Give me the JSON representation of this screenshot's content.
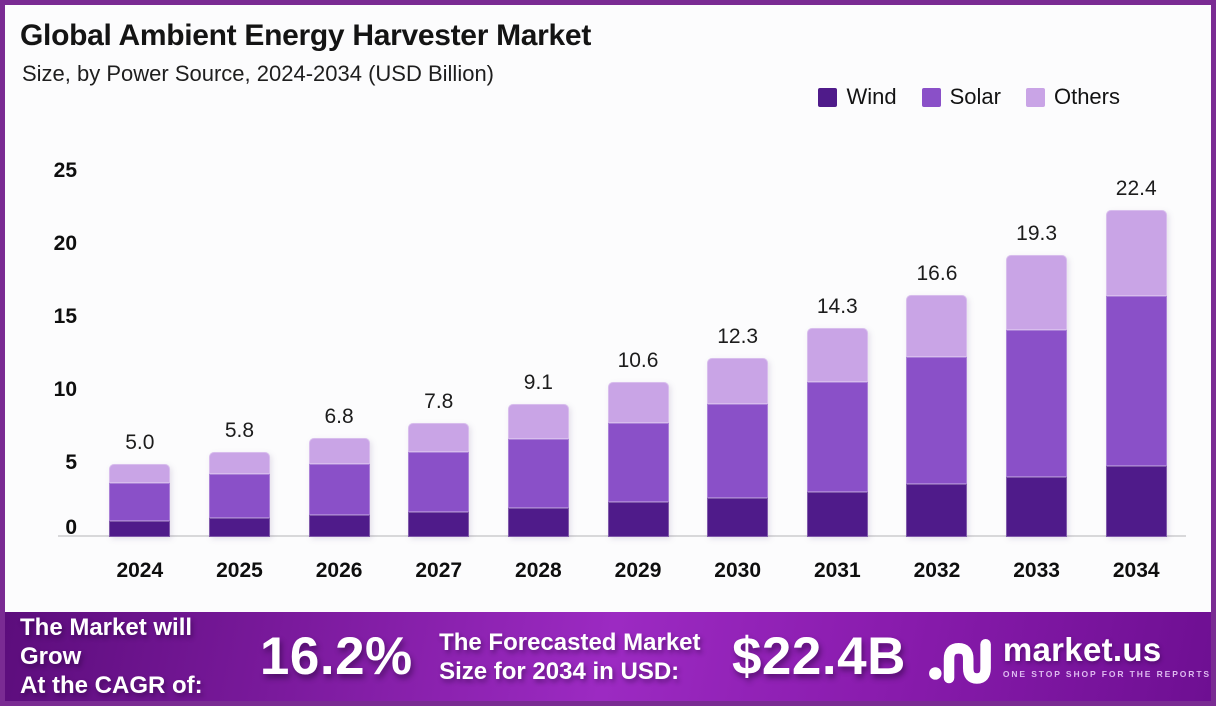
{
  "meta": {
    "border_color": "#7a2b93",
    "card_background": "#fcfcfd",
    "baseline_color": "#d8d8da"
  },
  "header": {
    "title": "Global Ambient Energy Harvester Market",
    "subtitle": "Size, by Power Source, 2024-2034 (USD Billion)"
  },
  "legend": [
    {
      "label": "Wind",
      "color": "#4f1b8a"
    },
    {
      "label": "Solar",
      "color": "#8a50c8"
    },
    {
      "label": "Others",
      "color": "#c9a4e6"
    }
  ],
  "chart_data": {
    "type": "bar",
    "stacked": true,
    "title": "Global Ambient Energy Harvester Market Size, by Power Source, 2024-2034 (USD Billion)",
    "categories": [
      "2024",
      "2025",
      "2026",
      "2027",
      "2028",
      "2029",
      "2030",
      "2031",
      "2032",
      "2033",
      "2034"
    ],
    "series": [
      {
        "name": "Wind",
        "color": "#4f1b8a",
        "values": [
          1.1,
          1.3,
          1.5,
          1.7,
          2.0,
          2.4,
          2.7,
          3.1,
          3.6,
          4.1,
          4.9
        ]
      },
      {
        "name": "Solar",
        "color": "#8a50c8",
        "values": [
          2.6,
          3.0,
          3.5,
          4.1,
          4.7,
          5.4,
          6.4,
          7.5,
          8.7,
          10.1,
          11.6
        ]
      },
      {
        "name": "Others",
        "color": "#c9a4e6",
        "values": [
          1.3,
          1.5,
          1.8,
          2.0,
          2.4,
          2.8,
          3.2,
          3.7,
          4.3,
          5.1,
          5.9
        ]
      }
    ],
    "totals": [
      5.0,
      5.8,
      6.8,
      7.8,
      9.1,
      10.6,
      12.3,
      14.3,
      16.6,
      19.3,
      22.4
    ],
    "total_labels": [
      "5.0",
      "5.8",
      "6.8",
      "7.8",
      "9.1",
      "10.6",
      "12.3",
      "14.3",
      "16.6",
      "19.3",
      "22.4"
    ],
    "y_ticks": [
      0,
      5,
      10,
      15,
      20,
      25
    ],
    "ylim": [
      0,
      25
    ],
    "xlabel": "",
    "ylabel": "",
    "grid": false,
    "legend_position": "top-right"
  },
  "footer": {
    "growth_text_line1": "The Market will Grow",
    "growth_text_line2": "At the CAGR of:",
    "cagr_value": "16.2%",
    "forecast_text_line1": "The Forecasted Market",
    "forecast_text_line2": "Size for 2034 in USD:",
    "forecast_value": "$22.4B",
    "logo": {
      "brand": "market.us",
      "tagline": "ONE STOP SHOP FOR THE REPORTS",
      "icon": "marketus-monogram-icon"
    }
  }
}
